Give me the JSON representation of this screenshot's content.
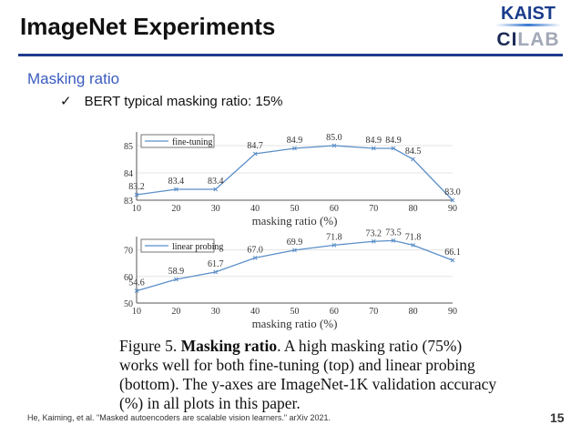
{
  "slide": {
    "title": "ImageNet Experiments",
    "logo_top": "KAIST",
    "logo_bottom_a": "CI",
    "logo_bottom_b": "LAB",
    "heading": "Masking ratio",
    "bullet_icon": "checkmark-icon",
    "bullet_mark": "✓",
    "bullet": "BERT typical masking ratio: 15%",
    "caption_prefix": "Figure 5. ",
    "caption_bold": "Masking ratio",
    "caption_rest": ". A high masking ratio (75%) works well for both fine-tuning (top) and linear probing (bottom). The y-axes are ImageNet-1K validation accuracy (%) in all plots in this paper.",
    "footer": "He, Kaiming, et al. \"Masked autoencoders are scalable vision learners.\" arXiv 2021.",
    "page_number": "15",
    "accent_color": "#3a5bbf",
    "rule_color": "#1f3b8c",
    "line_color": "#5b8fc9"
  },
  "chart_data": [
    {
      "type": "line",
      "title": "",
      "xlabel": "masking ratio (%)",
      "ylabel": "",
      "x": [
        10,
        20,
        30,
        40,
        50,
        60,
        70,
        75,
        80,
        90
      ],
      "series": [
        {
          "name": "fine-tuning",
          "values": [
            83.2,
            83.4,
            83.4,
            84.7,
            84.9,
            85.0,
            84.9,
            84.9,
            84.5,
            83.0
          ]
        }
      ],
      "labels": [
        "83.2",
        "83.4",
        "83.4",
        "84.7",
        "84.9",
        "85.0",
        "84.9",
        "84.9",
        "84.5",
        "83.0"
      ],
      "xticks": [
        "10",
        "20",
        "30",
        "40",
        "50",
        "60",
        "70",
        "80",
        "90"
      ],
      "yticks": [
        "83",
        "84",
        "85"
      ],
      "xlim": [
        10,
        90
      ],
      "ylim": [
        83,
        85.5
      ],
      "grid": true,
      "legend": "top-left"
    },
    {
      "type": "line",
      "title": "",
      "xlabel": "masking ratio (%)",
      "ylabel": "",
      "x": [
        10,
        20,
        30,
        40,
        50,
        60,
        70,
        75,
        80,
        90
      ],
      "series": [
        {
          "name": "linear probing",
          "values": [
            54.6,
            58.9,
            61.7,
            67.0,
            69.9,
            71.8,
            73.2,
            73.5,
            71.8,
            66.1
          ]
        }
      ],
      "labels": [
        "54.6",
        "58.9",
        "61.7",
        "67.0",
        "69.9",
        "71.8",
        "73.2",
        "73.5",
        "71.8",
        "66.1"
      ],
      "xticks": [
        "10",
        "20",
        "30",
        "40",
        "50",
        "60",
        "70",
        "80",
        "90"
      ],
      "yticks": [
        "50",
        "60",
        "70"
      ],
      "xlim": [
        10,
        90
      ],
      "ylim": [
        50,
        75
      ],
      "grid": true,
      "legend": "top-left"
    }
  ]
}
